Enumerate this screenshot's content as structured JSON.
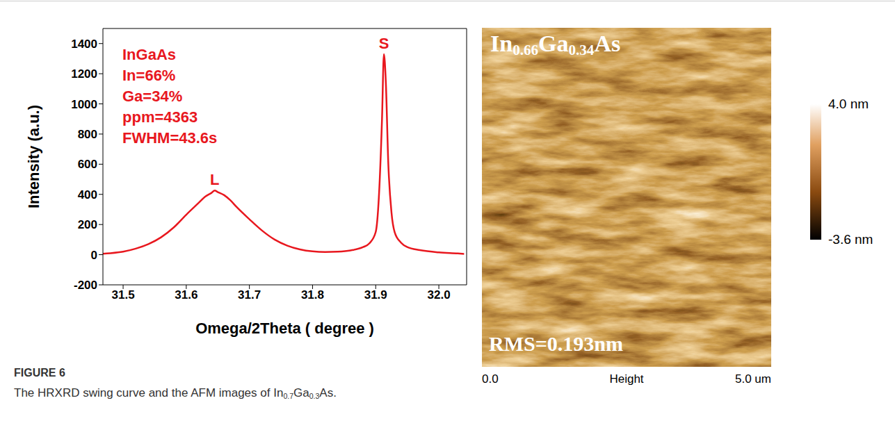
{
  "chart_data": {
    "type": "line",
    "x_label": "Omega/2Theta ( degree )",
    "y_label": "Intensity (a.u.)",
    "color": "#e8171e",
    "grid": false,
    "x": [
      31.46,
      31.48,
      31.5,
      31.52,
      31.54,
      31.56,
      31.58,
      31.6,
      31.62,
      31.63,
      31.64,
      31.645,
      31.65,
      31.66,
      31.67,
      31.68,
      31.7,
      31.72,
      31.74,
      31.76,
      31.78,
      31.8,
      31.82,
      31.84,
      31.86,
      31.88,
      31.89,
      31.9,
      31.905,
      31.91,
      31.913,
      31.916,
      31.92,
      31.925,
      31.93,
      31.94,
      31.95,
      31.97,
      32.0,
      32.03,
      32.04
    ],
    "values": [
      5,
      10,
      20,
      40,
      70,
      115,
      180,
      265,
      345,
      385,
      410,
      425,
      415,
      395,
      360,
      315,
      235,
      160,
      100,
      60,
      35,
      22,
      18,
      20,
      28,
      50,
      75,
      150,
      380,
      900,
      1330,
      1150,
      600,
      280,
      150,
      80,
      50,
      30,
      15,
      8,
      5
    ],
    "xlim": [
      31.468,
      32.044
    ],
    "xticks": [
      31.5,
      31.6,
      31.7,
      31.8,
      31.9,
      {
        "value": 32,
        "label": "32.0"
      }
    ],
    "ylim": [
      -200,
      1500
    ],
    "yticks": [
      -200,
      0,
      200,
      400,
      600,
      800,
      1000,
      1200,
      1400
    ],
    "annotations": [
      "InGaAs",
      "In=66%",
      "Ga=34%",
      "ppm=4363",
      "FWHM=43.6s"
    ],
    "peak_labels": [
      {
        "label": "L",
        "x": 31.645,
        "y": 425
      },
      {
        "label": "S",
        "x": 31.913,
        "y": 1330
      }
    ]
  },
  "afm_image": {
    "title": "In0.66Ga0.34As",
    "rms": "RMS=0.193nm",
    "channel": "Height",
    "scale": [
      {
        "value": 0,
        "label": "0.0"
      },
      {
        "value": 5,
        "label": "5.0 um"
      }
    ],
    "colorbar": {
      "range": [
        -3.6,
        4.0
      ],
      "ticks": [
        {
          "value": 4.0,
          "label": "4.0 nm"
        },
        {
          "value": -3.6,
          "label": "-3.6 nm"
        }
      ]
    }
  },
  "caption": {
    "label": "FIGURE 6",
    "text": "The HRXRD swing curve and the AFM images of In0.7Ga0.3As."
  }
}
